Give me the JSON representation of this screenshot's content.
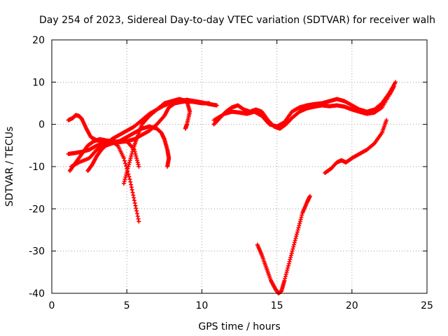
{
  "chart_data": {
    "type": "scatter",
    "title": "Day 254 of 2023, Sidereal Day-to-day VTEC variation (SDTVAR) for receiver walh",
    "xlabel": "GPS time / hours",
    "ylabel": "SDTVAR / TECUs",
    "xlim": [
      0,
      25
    ],
    "ylim": [
      -40,
      20
    ],
    "xticks": [
      0,
      5,
      10,
      15,
      20,
      25
    ],
    "yticks": [
      -40,
      -30,
      -20,
      -10,
      0,
      10,
      20
    ],
    "grid": true,
    "legend": "none",
    "marker": "plus",
    "color": "#ff0000",
    "series": [
      {
        "points": [
          [
            1.1,
            1
          ],
          [
            1.4,
            1.5
          ],
          [
            1.6,
            2.2
          ],
          [
            1.8,
            2
          ],
          [
            2.0,
            1.3
          ],
          [
            2.3,
            -1
          ],
          [
            2.6,
            -3
          ],
          [
            3.0,
            -3.8
          ],
          [
            3.5,
            -4
          ],
          [
            4.0,
            -4
          ],
          [
            4.5,
            -4.2
          ],
          [
            5.0,
            -4
          ],
          [
            5.5,
            -3.5
          ],
          [
            6.0,
            -2.5
          ],
          [
            6.5,
            -1.5
          ],
          [
            7.0,
            0
          ],
          [
            7.5,
            2
          ],
          [
            7.8,
            4
          ],
          [
            8.2,
            5
          ],
          [
            8.6,
            5.3
          ],
          [
            9.0,
            5.5
          ],
          [
            9.5,
            5.3
          ],
          [
            10.0,
            5
          ],
          [
            10.5,
            5
          ]
        ]
      },
      {
        "points": [
          [
            1.1,
            -7
          ],
          [
            1.5,
            -6.8
          ],
          [
            2.0,
            -6.5
          ],
          [
            2.5,
            -6
          ],
          [
            3.0,
            -5
          ],
          [
            3.5,
            -4.5
          ],
          [
            4.0,
            -4.2
          ],
          [
            4.5,
            -4
          ],
          [
            5.0,
            -4
          ],
          [
            5.5,
            -6
          ],
          [
            5.8,
            -10
          ]
        ]
      },
      {
        "points": [
          [
            1.2,
            -11
          ],
          [
            1.6,
            -9
          ],
          [
            2.0,
            -7
          ],
          [
            2.4,
            -5
          ],
          [
            2.8,
            -4
          ],
          [
            3.2,
            -3.5
          ],
          [
            3.6,
            -3.8
          ],
          [
            4.0,
            -4
          ],
          [
            4.4,
            -5
          ],
          [
            4.8,
            -8
          ],
          [
            5.2,
            -13
          ],
          [
            5.5,
            -18
          ],
          [
            5.8,
            -23
          ]
        ]
      },
      {
        "points": [
          [
            1.3,
            -10
          ],
          [
            1.8,
            -9
          ],
          [
            2.5,
            -8
          ],
          [
            3.0,
            -6
          ],
          [
            3.5,
            -5
          ],
          [
            4.0,
            -3.5
          ],
          [
            4.5,
            -2.5
          ],
          [
            5.0,
            -1.5
          ],
          [
            5.5,
            -0.5
          ],
          [
            6.0,
            1
          ],
          [
            6.5,
            2.5
          ],
          [
            7.0,
            3.5
          ],
          [
            7.5,
            4.5
          ],
          [
            8.0,
            5.2
          ],
          [
            8.5,
            5.5
          ],
          [
            9.0,
            5.8
          ],
          [
            9.5,
            5.5
          ],
          [
            10.0,
            5.2
          ],
          [
            10.5,
            4.8
          ],
          [
            11.0,
            4.5
          ]
        ]
      },
      {
        "points": [
          [
            2.4,
            -11
          ],
          [
            2.7,
            -9.5
          ],
          [
            3.0,
            -7.5
          ],
          [
            3.3,
            -6
          ],
          [
            3.6,
            -5
          ],
          [
            4.0,
            -4.5
          ],
          [
            4.5,
            -4
          ],
          [
            5.0,
            -3
          ],
          [
            5.5,
            -2
          ],
          [
            6.0,
            -1
          ],
          [
            6.5,
            -0.5
          ],
          [
            7.0,
            -1
          ],
          [
            7.3,
            -2
          ],
          [
            7.5,
            -3.5
          ],
          [
            7.7,
            -6
          ],
          [
            7.8,
            -8
          ],
          [
            7.7,
            -10
          ]
        ]
      },
      {
        "points": [
          [
            4.8,
            -14
          ],
          [
            5.1,
            -10
          ],
          [
            5.4,
            -6
          ],
          [
            5.7,
            -3
          ],
          [
            6.0,
            0
          ],
          [
            6.5,
            2
          ],
          [
            7.0,
            3.5
          ],
          [
            7.5,
            5
          ],
          [
            8.0,
            5.5
          ],
          [
            8.5,
            6
          ],
          [
            9.0,
            5.5
          ],
          [
            9.2,
            3
          ],
          [
            9.0,
            0
          ],
          [
            8.9,
            -1
          ]
        ]
      },
      {
        "points": [
          [
            10.8,
            0
          ],
          [
            11.2,
            1.5
          ],
          [
            11.6,
            3
          ],
          [
            12.0,
            4
          ],
          [
            12.4,
            4.5
          ],
          [
            12.8,
            3.5
          ],
          [
            13.2,
            3
          ],
          [
            13.6,
            3.5
          ],
          [
            14.0,
            3
          ],
          [
            14.4,
            1
          ],
          [
            14.8,
            -0.5
          ],
          [
            15.2,
            -1
          ],
          [
            15.6,
            0
          ],
          [
            16.0,
            1.5
          ],
          [
            16.5,
            3
          ],
          [
            17.0,
            3.8
          ],
          [
            17.5,
            4.2
          ],
          [
            18.0,
            4.5
          ],
          [
            18.5,
            4.3
          ],
          [
            19.0,
            4.5
          ],
          [
            19.5,
            4.2
          ],
          [
            20.0,
            3.5
          ],
          [
            20.5,
            3
          ],
          [
            21.0,
            2.5
          ],
          [
            21.5,
            2.8
          ],
          [
            22.0,
            4
          ],
          [
            22.5,
            7
          ],
          [
            22.8,
            9
          ]
        ]
      },
      {
        "points": [
          [
            10.8,
            1
          ],
          [
            11.5,
            2.5
          ],
          [
            12.0,
            3
          ],
          [
            12.5,
            2.8
          ],
          [
            13.0,
            2.5
          ],
          [
            13.5,
            3
          ],
          [
            14.0,
            2
          ],
          [
            14.5,
            0
          ],
          [
            15.0,
            -0.5
          ],
          [
            15.5,
            0.5
          ],
          [
            16.0,
            3
          ],
          [
            16.5,
            4
          ],
          [
            17.0,
            4.5
          ],
          [
            17.5,
            4.8
          ],
          [
            18.0,
            5
          ],
          [
            18.5,
            5.5
          ],
          [
            19.0,
            6
          ],
          [
            19.5,
            5.5
          ],
          [
            20.0,
            4.5
          ],
          [
            20.5,
            3.5
          ],
          [
            21.0,
            3
          ],
          [
            21.5,
            3.5
          ],
          [
            22.0,
            5
          ],
          [
            22.5,
            7.5
          ],
          [
            22.9,
            10
          ]
        ]
      },
      {
        "points": [
          [
            13.7,
            -28.5
          ],
          [
            14.0,
            -31
          ],
          [
            14.3,
            -34
          ],
          [
            14.6,
            -37
          ],
          [
            14.9,
            -39
          ],
          [
            15.1,
            -40
          ],
          [
            15.3,
            -39.5
          ],
          [
            15.5,
            -37
          ],
          [
            15.8,
            -33
          ],
          [
            16.1,
            -29
          ],
          [
            16.4,
            -25
          ],
          [
            16.7,
            -21
          ],
          [
            17.0,
            -18.5
          ],
          [
            17.2,
            -17
          ]
        ]
      },
      {
        "points": [
          [
            18.2,
            -11.5
          ],
          [
            18.6,
            -10.5
          ],
          [
            19.0,
            -9
          ],
          [
            19.3,
            -8.5
          ],
          [
            19.6,
            -9
          ],
          [
            20.0,
            -8
          ],
          [
            20.5,
            -7
          ],
          [
            21.0,
            -6
          ],
          [
            21.5,
            -4.5
          ],
          [
            22.0,
            -2
          ],
          [
            22.3,
            1
          ]
        ]
      }
    ]
  }
}
